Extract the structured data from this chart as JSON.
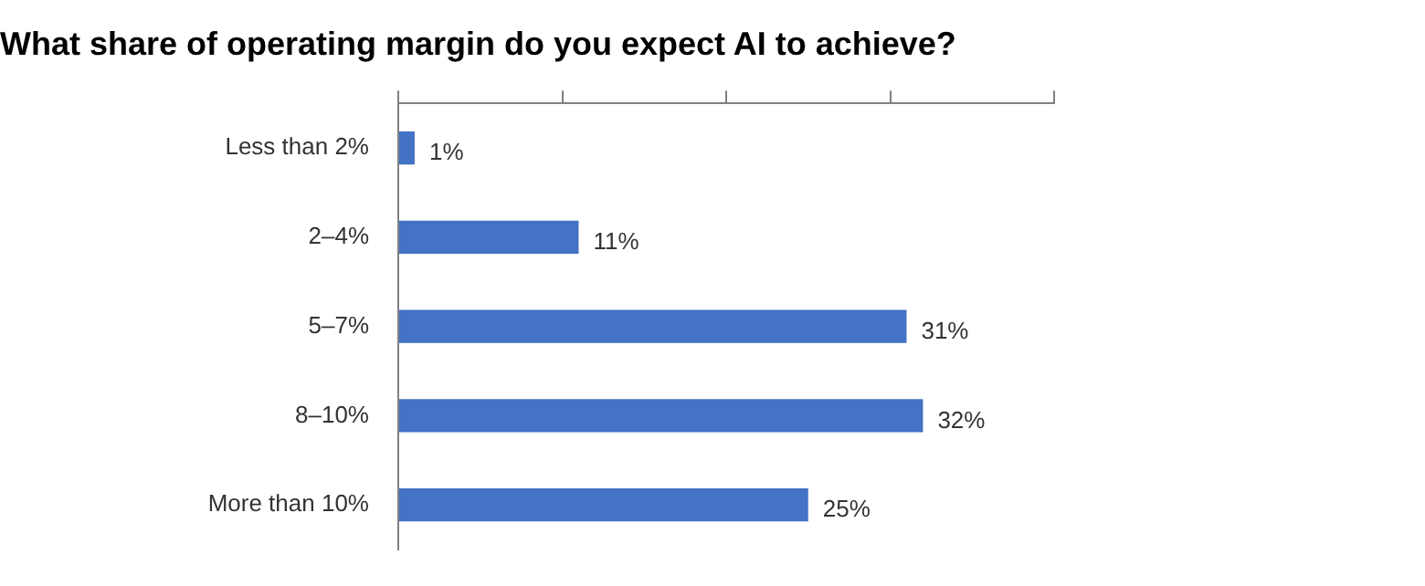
{
  "chart_data": {
    "type": "bar",
    "orientation": "horizontal",
    "title": "What share of operating margin do you expect AI to achieve?",
    "categories": [
      "Less than 2%",
      "2–4%",
      "5–7%",
      "8–10%",
      "More than 10%"
    ],
    "values": [
      1,
      11,
      31,
      32,
      25
    ],
    "value_labels": [
      "1%",
      "11%",
      "31%",
      "32%",
      "25%"
    ],
    "color": "#4472c4",
    "xlim": [
      0,
      40
    ],
    "xticks": [
      {
        "value": 0,
        "label": null
      },
      {
        "value": 10,
        "label": null
      },
      {
        "value": 20,
        "label": null
      },
      {
        "value": 30,
        "label": null
      },
      {
        "value": 40,
        "label": null
      }
    ],
    "tick_labels": "y",
    "grid": false,
    "legend": false
  }
}
